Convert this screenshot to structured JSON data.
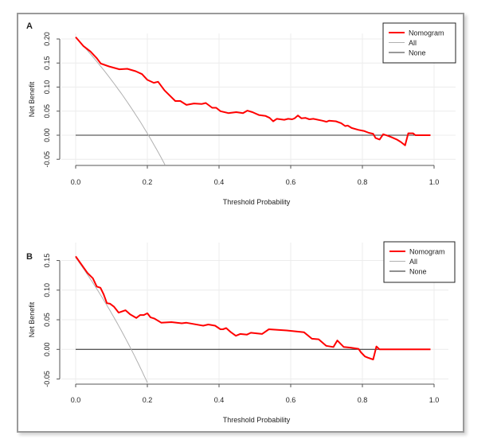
{
  "figure": {
    "panels": [
      {
        "label": "A"
      },
      {
        "label": "B"
      }
    ]
  },
  "chart_data": [
    {
      "type": "line",
      "panel": "A",
      "title": "",
      "xlabel": "Threshold Probability",
      "ylabel": "Net Benefit",
      "xlim": [
        0.0,
        1.0
      ],
      "ylim": [
        -0.05,
        0.2
      ],
      "x_ticks": [
        "0.0",
        "0.2",
        "0.4",
        "0.6",
        "0.8",
        "1.0"
      ],
      "y_ticks": [
        "-0.05",
        "0.00",
        "0.05",
        "0.10",
        "0.15",
        "0.20"
      ],
      "grid": true,
      "legend": {
        "position": "top-right",
        "entries": [
          "Nomogram",
          "All",
          "None"
        ]
      },
      "colors": {
        "Nomogram": "#ff0000",
        "All": "#b0b0b0",
        "None": "#333333"
      },
      "series": [
        {
          "name": "Nomogram",
          "x": [
            0.0,
            0.022,
            0.041,
            0.059,
            0.07,
            0.093,
            0.122,
            0.144,
            0.167,
            0.185,
            0.2,
            0.218,
            0.23,
            0.248,
            0.278,
            0.292,
            0.309,
            0.33,
            0.352,
            0.363,
            0.381,
            0.392,
            0.404,
            0.426,
            0.448,
            0.467,
            0.479,
            0.493,
            0.511,
            0.53,
            0.541,
            0.551,
            0.561,
            0.582,
            0.593,
            0.604,
            0.611,
            0.62,
            0.63,
            0.641,
            0.652,
            0.663,
            0.689,
            0.7,
            0.707,
            0.726,
            0.741,
            0.752,
            0.759,
            0.77,
            0.789,
            0.804,
            0.818,
            0.83,
            0.837,
            0.848,
            0.858,
            0.87,
            0.881,
            0.896,
            0.907,
            0.919,
            0.928,
            0.941,
            0.948,
            0.99
          ],
          "y": [
            0.204,
            0.185,
            0.174,
            0.16,
            0.149,
            0.143,
            0.137,
            0.138,
            0.133,
            0.127,
            0.115,
            0.109,
            0.111,
            0.093,
            0.071,
            0.071,
            0.063,
            0.066,
            0.065,
            0.067,
            0.057,
            0.057,
            0.05,
            0.046,
            0.048,
            0.046,
            0.051,
            0.048,
            0.042,
            0.04,
            0.036,
            0.029,
            0.034,
            0.032,
            0.034,
            0.033,
            0.035,
            0.041,
            0.035,
            0.036,
            0.033,
            0.034,
            0.03,
            0.028,
            0.03,
            0.029,
            0.025,
            0.019,
            0.02,
            0.015,
            0.011,
            0.009,
            0.005,
            0.003,
            -0.006,
            -0.009,
            0.002,
            -0.001,
            -0.004,
            -0.009,
            -0.014,
            -0.021,
            0.004,
            0.004,
            0.0,
            0.0
          ]
        },
        {
          "name": "All",
          "prevalence": 0.203,
          "x": [
            0.0,
            0.05,
            0.1,
            0.15,
            0.2,
            0.25
          ],
          "y": [
            0.203,
            0.161,
            0.115,
            0.062,
            0.004,
            -0.063
          ]
        },
        {
          "name": "None",
          "x": [
            0.0,
            0.99
          ],
          "y": [
            0.0,
            0.0
          ]
        }
      ]
    },
    {
      "type": "line",
      "panel": "B",
      "title": "",
      "xlabel": "Threshold Probability",
      "ylabel": "Net Benefit",
      "xlim": [
        0.0,
        1.0
      ],
      "ylim": [
        -0.05,
        0.15
      ],
      "x_ticks": [
        "0.0",
        "0.2",
        "0.4",
        "0.6",
        "0.8",
        "1.0"
      ],
      "y_ticks": [
        "-0.05",
        "0.00",
        "0.05",
        "0.10",
        "0.15"
      ],
      "grid": true,
      "legend": {
        "position": "top-right",
        "entries": [
          "Nomogram",
          "All",
          "None"
        ]
      },
      "colors": {
        "Nomogram": "#ff0000",
        "All": "#b0b0b0",
        "None": "#222222"
      },
      "series": [
        {
          "name": "Nomogram",
          "x": [
            0.0,
            0.019,
            0.033,
            0.048,
            0.059,
            0.069,
            0.078,
            0.087,
            0.096,
            0.107,
            0.12,
            0.139,
            0.152,
            0.169,
            0.18,
            0.19,
            0.2,
            0.209,
            0.22,
            0.239,
            0.267,
            0.296,
            0.309,
            0.356,
            0.37,
            0.389,
            0.404,
            0.411,
            0.42,
            0.433,
            0.447,
            0.459,
            0.478,
            0.489,
            0.507,
            0.52,
            0.539,
            0.589,
            0.637,
            0.659,
            0.678,
            0.699,
            0.719,
            0.73,
            0.748,
            0.767,
            0.789,
            0.796,
            0.807,
            0.815,
            0.83,
            0.839,
            0.848,
            0.99
          ],
          "y": [
            0.157,
            0.141,
            0.129,
            0.12,
            0.106,
            0.104,
            0.093,
            0.078,
            0.077,
            0.072,
            0.062,
            0.066,
            0.059,
            0.053,
            0.058,
            0.058,
            0.061,
            0.054,
            0.052,
            0.045,
            0.046,
            0.044,
            0.045,
            0.04,
            0.042,
            0.04,
            0.034,
            0.034,
            0.036,
            0.029,
            0.023,
            0.026,
            0.025,
            0.028,
            0.027,
            0.026,
            0.034,
            0.032,
            0.029,
            0.018,
            0.017,
            0.006,
            0.004,
            0.015,
            0.004,
            0.003,
            0.001,
            -0.005,
            -0.012,
            -0.014,
            -0.017,
            0.005,
            0.0,
            0.0
          ]
        },
        {
          "name": "All",
          "prevalence": 0.155,
          "x": [
            0.0,
            0.05,
            0.1,
            0.15,
            0.2
          ],
          "y": [
            0.155,
            0.111,
            0.061,
            0.006,
            -0.056
          ]
        },
        {
          "name": "None",
          "x": [
            0.0,
            0.99
          ],
          "y": [
            0.0,
            0.0
          ]
        }
      ]
    }
  ]
}
